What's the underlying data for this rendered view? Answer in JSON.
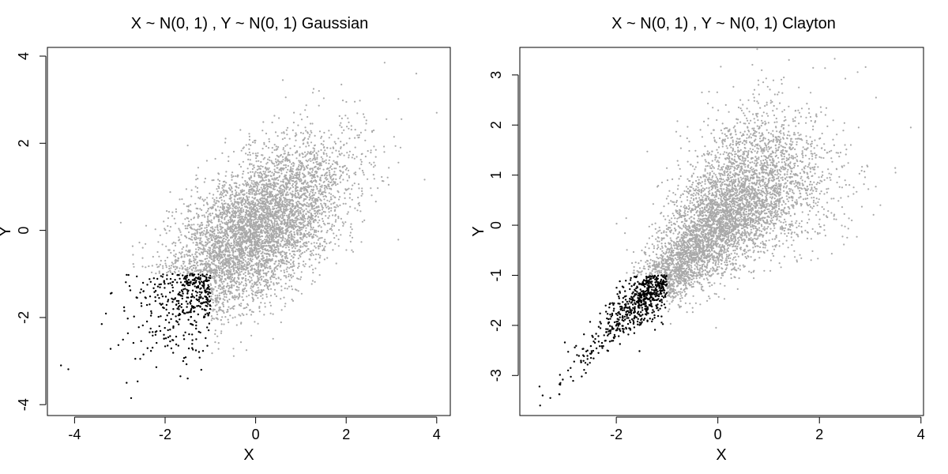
{
  "colors": {
    "background": "#ffffff",
    "highlight": "#000000",
    "base": "#a9a9a9"
  },
  "chart_data": [
    {
      "type": "scatter",
      "title": "X ~ N(0, 1) ,   Y ~ N(0, 1) Gaussian",
      "xlabel": "X",
      "ylabel": "Y",
      "xlim": [
        -4.6,
        4.3
      ],
      "ylim": [
        -4.25,
        4.2
      ],
      "xticks": [
        -4,
        -2,
        0,
        2,
        4
      ],
      "xtick_labels": [
        "-4",
        "-2",
        "0",
        "2",
        "4"
      ],
      "yticks": [
        -4,
        -2,
        0,
        2,
        4
      ],
      "ytick_labels": [
        "-4",
        "-2",
        "0",
        "2",
        "4"
      ],
      "grid": false,
      "series": [
        {
          "highlight": false,
          "color": "#a9a9a9",
          "n": 5000,
          "distribution": "bivariate normal, approx correlation 0.6, points outside the X<-1 and Y<-1 quadrant",
          "x": [
            2.85,
            3.55,
            4.0,
            3.2,
            -1.5,
            0.6,
            1.4
          ],
          "y": [
            3.85,
            3.6,
            2.7,
            1.9,
            1.95,
            3.45,
            3.2
          ]
        },
        {
          "highlight": true,
          "color": "#000000",
          "n": 340,
          "distribution": "same sample restricted to X<-1 and Y<-1",
          "x": [
            -4.3,
            -3.4,
            -3.2,
            -2.9,
            -2.85,
            -2.75,
            -1.5,
            -2.55,
            -1.6,
            -1.2
          ],
          "y": [
            -3.1,
            -2.15,
            -1.45,
            -1.85,
            -3.5,
            -3.85,
            -3.4,
            -2.95,
            -3.0,
            -3.2
          ]
        }
      ]
    },
    {
      "type": "scatter",
      "title": "X ~ N(0, 1) ,   Y ~ N(0, 1) Clayton",
      "xlabel": "X",
      "ylabel": "Y",
      "xlim": [
        -3.9,
        4.05
      ],
      "ylim": [
        -3.8,
        3.55
      ],
      "xticks": [
        -2,
        0,
        2,
        4
      ],
      "xtick_labels": [
        "-2",
        "0",
        "2",
        "4"
      ],
      "yticks": [
        -3,
        -2,
        -1,
        0,
        1,
        2,
        3
      ],
      "ytick_labels": [
        "-3",
        "-2",
        "-1",
        "0",
        "1",
        "2",
        "3"
      ],
      "grid": false,
      "series": [
        {
          "highlight": false,
          "color": "#a9a9a9",
          "n": 5000,
          "distribution": "Clayton copula with normal margins, lower-tail dependence, points outside the X<-1 and Y<-1 quadrant",
          "x": [
            1.4,
            3.8,
            3.5,
            3.2,
            1.3
          ],
          "y": [
            3.3,
            1.95,
            1.05,
            0.4,
            2.95
          ]
        },
        {
          "highlight": true,
          "color": "#000000",
          "n": 420,
          "distribution": "same sample restricted to X<-1 and Y<-1, concentrated along the diagonal",
          "x": [
            -3.5,
            -3.45,
            -3.3,
            -3.1,
            -2.95,
            -2.9,
            -2.6
          ],
          "y": [
            -3.6,
            -3.4,
            -3.45,
            -3.15,
            -2.9,
            -2.85,
            -2.95
          ]
        }
      ]
    }
  ]
}
